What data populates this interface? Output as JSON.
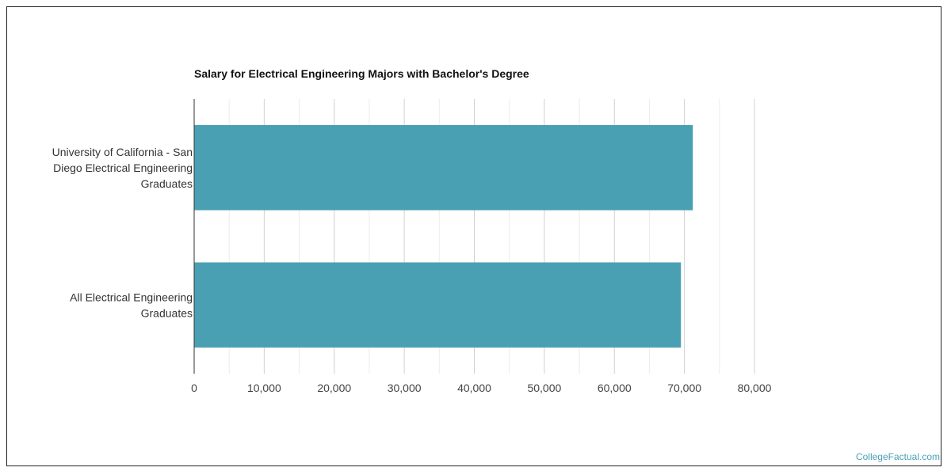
{
  "chart_data": {
    "type": "bar",
    "orientation": "horizontal",
    "title": "Salary for Electrical Engineering Majors with Bachelor's Degree",
    "categories": [
      [
        "University of California - San",
        "Diego Electrical Engineering",
        "Graduates"
      ],
      [
        "All Electrical Engineering",
        "Graduates"
      ]
    ],
    "values": [
      71200,
      69500
    ],
    "xlim": [
      0,
      80000
    ],
    "ticks": [
      0,
      10000,
      20000,
      30000,
      40000,
      50000,
      60000,
      70000,
      80000
    ],
    "tick_labels": [
      "0",
      "10,000",
      "20,000",
      "30,000",
      "40,000",
      "50,000",
      "60,000",
      "70,000",
      "80,000"
    ],
    "xlabel": "",
    "ylabel": "",
    "grid": true,
    "legend": "none",
    "bar_color": "#4aa0b3"
  },
  "watermark": "CollegeFactual.com"
}
